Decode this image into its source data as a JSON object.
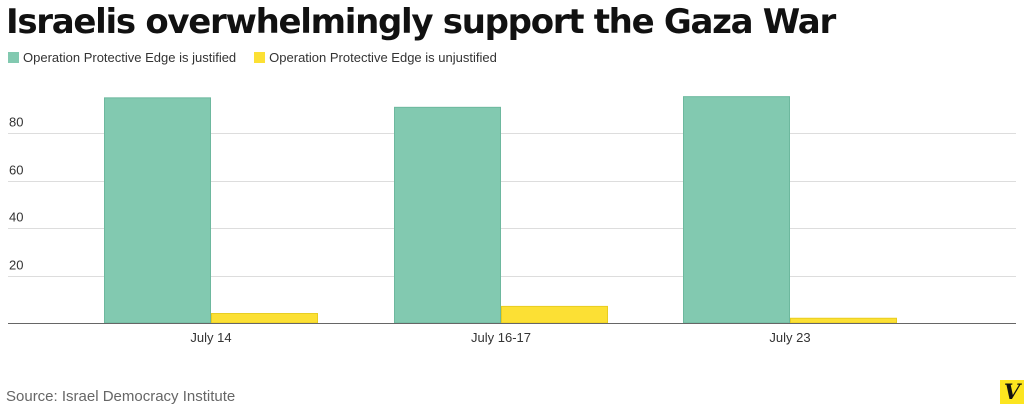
{
  "title": "Israelis overwhelmingly support the Gaza War",
  "source": "Source: Israel Democracy Institute",
  "brand_letter": "V",
  "colors": {
    "justified": "#82c9b0",
    "unjustified": "#fce034",
    "grid": "#dddddd",
    "axis": "#666666"
  },
  "chart_data": {
    "type": "bar",
    "categories": [
      "July 14",
      "July 16-17",
      "July 23"
    ],
    "series": [
      {
        "name": "Operation Protective Edge is justified",
        "values": [
          95,
          91,
          95.5
        ]
      },
      {
        "name": "Operation Protective Edge is unjustified",
        "values": [
          4,
          7,
          2
        ]
      }
    ],
    "yticks": [
      20,
      40,
      60,
      80
    ],
    "ylim": [
      0,
      100
    ],
    "grid": true,
    "legend": "top-left",
    "xlabel": "",
    "ylabel": ""
  }
}
